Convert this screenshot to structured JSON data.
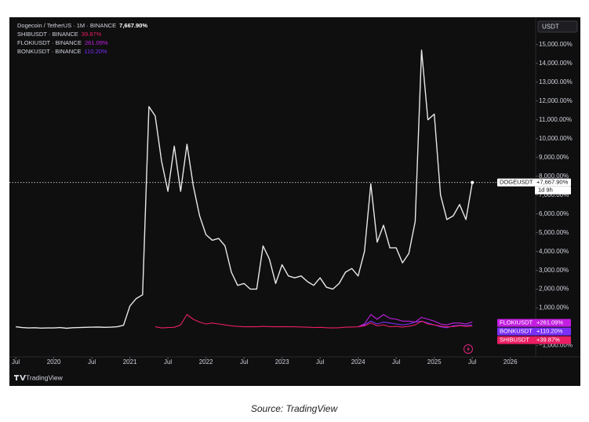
{
  "chart_data": {
    "type": "line",
    "caption": "Source: TradingView",
    "brand": "TradingView",
    "currency": "USDT",
    "countdown": "1d 9h",
    "x": [
      "2019-07",
      "2019-08",
      "2019-09",
      "2019-10",
      "2019-11",
      "2019-12",
      "2020-01",
      "2020-02",
      "2020-03",
      "2020-04",
      "2020-05",
      "2020-06",
      "2020-07",
      "2020-08",
      "2020-09",
      "2020-10",
      "2020-11",
      "2020-12",
      "2021-01",
      "2021-02",
      "2021-03",
      "2021-04",
      "2021-05",
      "2021-06",
      "2021-07",
      "2021-08",
      "2021-09",
      "2021-10",
      "2021-11",
      "2021-12",
      "2022-01",
      "2022-02",
      "2022-03",
      "2022-04",
      "2022-05",
      "2022-06",
      "2022-07",
      "2022-08",
      "2022-09",
      "2022-10",
      "2022-11",
      "2022-12",
      "2023-01",
      "2023-02",
      "2023-03",
      "2023-04",
      "2023-05",
      "2023-06",
      "2023-07",
      "2023-08",
      "2023-09",
      "2023-10",
      "2023-11",
      "2023-12",
      "2024-01",
      "2024-02",
      "2024-03",
      "2024-04",
      "2024-05",
      "2024-06",
      "2024-07",
      "2024-08",
      "2024-09",
      "2024-10",
      "2024-11",
      "2024-12",
      "2025-01",
      "2025-02",
      "2025-03",
      "2025-04",
      "2025-05",
      "2025-06",
      "2025-07"
    ],
    "series": [
      {
        "name": "DOGEUSDT",
        "legend": "Dogecoin / TetherUS · 1M · BINANCE",
        "legend_value": "7,667.90%",
        "tag_label": "+7,667.90%",
        "color": "#e8e8e8",
        "values": [
          0,
          -40,
          -60,
          -50,
          -70,
          -60,
          -60,
          -40,
          -80,
          -50,
          -40,
          -30,
          -20,
          -10,
          -30,
          -20,
          0,
          80,
          1100,
          1500,
          1700,
          11700,
          11200,
          8800,
          7200,
          9600,
          7200,
          9700,
          7500,
          5900,
          4900,
          4600,
          4700,
          4300,
          2900,
          2200,
          2300,
          2000,
          2000,
          4300,
          3600,
          2300,
          3300,
          2700,
          2600,
          2700,
          2400,
          2200,
          2600,
          2100,
          2000,
          2300,
          2900,
          3100,
          2700,
          4000,
          7600,
          4500,
          5400,
          4200,
          4200,
          3400,
          3900,
          5600,
          14700,
          11000,
          11300,
          7000,
          5700,
          5900,
          6500,
          5700,
          7667.9
        ]
      },
      {
        "name": "SHIBUSDT",
        "legend": "SHIBUSDT · BINANCE",
        "legend_value": "39.87%",
        "tag_label": "+39.87%",
        "color": "#e91e63",
        "values": [
          null,
          null,
          null,
          null,
          null,
          null,
          null,
          null,
          null,
          null,
          null,
          null,
          null,
          null,
          null,
          null,
          null,
          null,
          null,
          null,
          null,
          null,
          0,
          -60,
          -40,
          -30,
          100,
          650,
          400,
          250,
          150,
          200,
          150,
          100,
          50,
          20,
          0,
          10,
          0,
          20,
          10,
          0,
          10,
          0,
          0,
          -10,
          -20,
          -40,
          -30,
          -50,
          -60,
          -50,
          -20,
          -10,
          0,
          50,
          200,
          50,
          100,
          0,
          20,
          -10,
          30,
          100,
          300,
          150,
          100,
          40,
          0,
          10,
          60,
          20,
          39.87
        ]
      },
      {
        "name": "FLOKIUSDT",
        "legend": "FLOKIUSDT · BINANCE",
        "legend_value": "261.09%",
        "tag_label": "+261.09%",
        "color": "#c21fe0",
        "values": [
          null,
          null,
          null,
          null,
          null,
          null,
          null,
          null,
          null,
          null,
          null,
          null,
          null,
          null,
          null,
          null,
          null,
          null,
          null,
          null,
          null,
          null,
          null,
          null,
          null,
          null,
          null,
          null,
          null,
          null,
          null,
          null,
          null,
          null,
          null,
          null,
          null,
          null,
          null,
          null,
          null,
          null,
          null,
          null,
          null,
          null,
          null,
          null,
          null,
          null,
          null,
          null,
          null,
          null,
          0,
          150,
          650,
          400,
          650,
          450,
          400,
          300,
          300,
          250,
          500,
          400,
          300,
          150,
          100,
          200,
          200,
          150,
          261.09
        ]
      },
      {
        "name": "BONKUSDT",
        "legend": "BONKUSDT · BINANCE",
        "legend_value": "110.20%",
        "tag_label": "+110.20%",
        "color": "#7b2ff7",
        "values": [
          null,
          null,
          null,
          null,
          null,
          null,
          null,
          null,
          null,
          null,
          null,
          null,
          null,
          null,
          null,
          null,
          null,
          null,
          null,
          null,
          null,
          null,
          null,
          null,
          null,
          null,
          null,
          null,
          null,
          null,
          null,
          null,
          null,
          null,
          null,
          null,
          null,
          null,
          null,
          null,
          null,
          null,
          null,
          null,
          null,
          null,
          null,
          null,
          null,
          null,
          null,
          null,
          null,
          null,
          0,
          100,
          300,
          150,
          250,
          200,
          150,
          100,
          150,
          250,
          300,
          200,
          100,
          0,
          -50,
          50,
          80,
          60,
          110.2
        ]
      }
    ],
    "xlim": [
      "2019-06",
      "2026-05"
    ],
    "xticks": [
      {
        "value": "2019-07",
        "label": "Jul"
      },
      {
        "value": "2020-01",
        "label": "2020"
      },
      {
        "value": "2020-07",
        "label": "Jul"
      },
      {
        "value": "2021-01",
        "label": "2021"
      },
      {
        "value": "2021-07",
        "label": "Jul"
      },
      {
        "value": "2022-01",
        "label": "2022"
      },
      {
        "value": "2022-07",
        "label": "Jul"
      },
      {
        "value": "2023-01",
        "label": "2023"
      },
      {
        "value": "2023-07",
        "label": "Jul"
      },
      {
        "value": "2024-01",
        "label": "2024"
      },
      {
        "value": "2024-07",
        "label": "Jul"
      },
      {
        "value": "2025-01",
        "label": "2025"
      },
      {
        "value": "2025-07",
        "label": "Jul"
      },
      {
        "value": "2026-01",
        "label": "2026"
      }
    ],
    "ylim": [
      -1600,
      16450
    ],
    "yticks": [
      {
        "value": 15000,
        "label": "15,000.00%"
      },
      {
        "value": 14000,
        "label": "14,000.00%"
      },
      {
        "value": 13000,
        "label": "13,000.00%"
      },
      {
        "value": 12000,
        "label": "12,000.00%"
      },
      {
        "value": 11000,
        "label": "11,000.00%"
      },
      {
        "value": 10000,
        "label": "10,000.00%"
      },
      {
        "value": 9000,
        "label": "9,000.00%"
      },
      {
        "value": 8000,
        "label": "8,000.00%"
      },
      {
        "value": 7000,
        "label": "7,000.00%"
      },
      {
        "value": 6000,
        "label": "6,000.00%"
      },
      {
        "value": 5000,
        "label": "5,000.00%"
      },
      {
        "value": 4000,
        "label": "4,000.00%"
      },
      {
        "value": 3000,
        "label": "3,000.00%"
      },
      {
        "value": 2000,
        "label": "2,000.00%"
      },
      {
        "value": 1000,
        "label": "1,000.00%"
      },
      {
        "value": -1000,
        "label": "−1,000.00%"
      }
    ]
  }
}
